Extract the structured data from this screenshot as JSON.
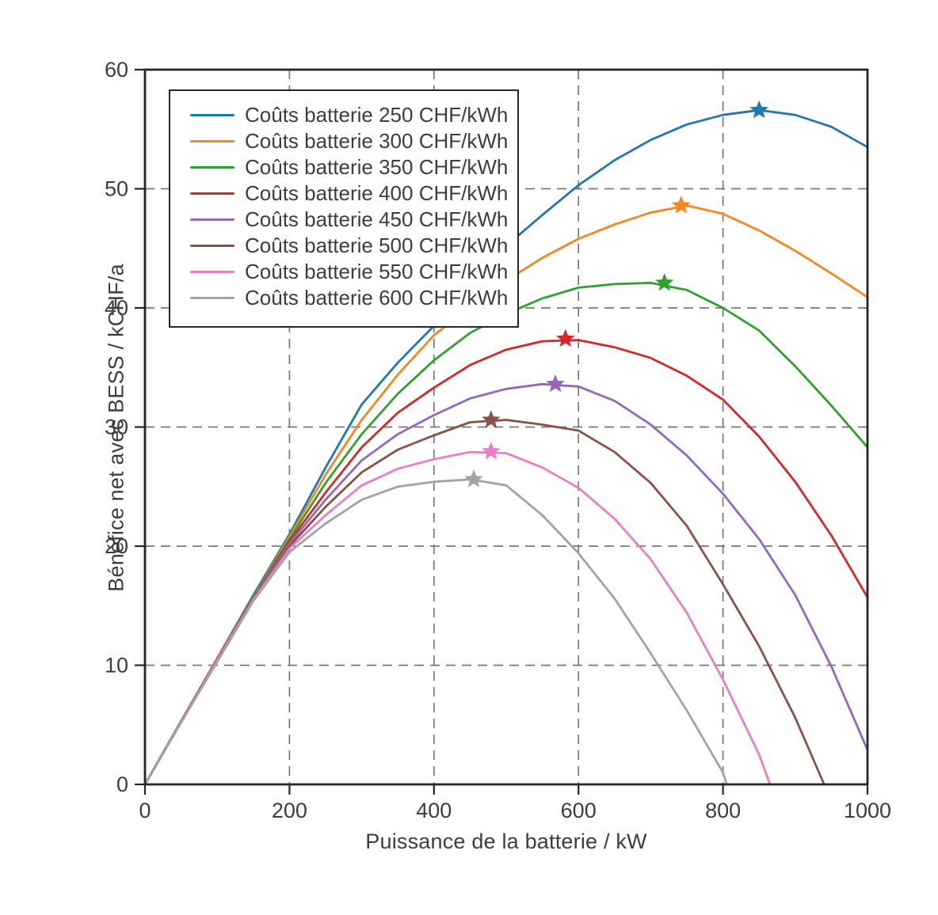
{
  "figure": {
    "background": "#ffffff",
    "axis_color": "#262626",
    "grid_color": "#777777",
    "text_color": "#3d3d3d"
  },
  "chart_data": {
    "type": "line",
    "title": "",
    "xlabel": "Puissance de la batterie / kW",
    "ylabel": "Bénéfice net avec BESS / kCHF/a",
    "xlim": [
      0,
      1000
    ],
    "ylim": [
      0,
      60
    ],
    "xticks": [
      0,
      200,
      400,
      600,
      800,
      1000
    ],
    "yticks": [
      0,
      10,
      20,
      30,
      40,
      50,
      60
    ],
    "grid": "dashed",
    "legend_position": "upper-left",
    "marker": "star-at-maximum",
    "series": [
      {
        "name": "Coûts batterie 250 CHF/kWh",
        "color": "#2077b4",
        "peak": [
          850,
          56.6
        ],
        "points": [
          [
            0,
            0
          ],
          [
            50,
            5.3
          ],
          [
            100,
            10.6
          ],
          [
            150,
            15.9
          ],
          [
            200,
            21.0
          ],
          [
            250,
            26.6
          ],
          [
            300,
            31.9
          ],
          [
            350,
            35.4
          ],
          [
            400,
            38.5
          ],
          [
            450,
            41.9
          ],
          [
            500,
            45.2
          ],
          [
            550,
            47.8
          ],
          [
            600,
            50.3
          ],
          [
            650,
            52.4
          ],
          [
            700,
            54.1
          ],
          [
            750,
            55.4
          ],
          [
            800,
            56.2
          ],
          [
            850,
            56.6
          ],
          [
            900,
            56.2
          ],
          [
            950,
            55.2
          ],
          [
            1000,
            53.5
          ]
        ]
      },
      {
        "name": "Coûts batterie 300 CHF/kWh",
        "color": "#f78620",
        "peak": [
          742,
          48.6
        ],
        "points": [
          [
            0,
            0
          ],
          [
            50,
            5.3
          ],
          [
            100,
            10.6
          ],
          [
            150,
            15.8
          ],
          [
            200,
            20.8
          ],
          [
            250,
            26.0
          ],
          [
            300,
            30.6
          ],
          [
            350,
            34.4
          ],
          [
            400,
            37.7
          ],
          [
            450,
            40.1
          ],
          [
            500,
            42.3
          ],
          [
            550,
            44.2
          ],
          [
            600,
            45.8
          ],
          [
            650,
            47.0
          ],
          [
            700,
            48.0
          ],
          [
            750,
            48.6
          ],
          [
            800,
            47.9
          ],
          [
            850,
            46.5
          ],
          [
            900,
            44.8
          ],
          [
            950,
            42.9
          ],
          [
            1000,
            40.9
          ]
        ]
      },
      {
        "name": "Coûts batterie 350 CHF/kWh",
        "color": "#2ea12e",
        "peak": [
          719,
          42.1
        ],
        "points": [
          [
            0,
            0
          ],
          [
            50,
            5.3
          ],
          [
            100,
            10.5
          ],
          [
            150,
            15.8
          ],
          [
            200,
            20.6
          ],
          [
            250,
            25.3
          ],
          [
            300,
            29.4
          ],
          [
            350,
            32.8
          ],
          [
            400,
            35.6
          ],
          [
            450,
            37.9
          ],
          [
            500,
            39.5
          ],
          [
            550,
            40.8
          ],
          [
            600,
            41.7
          ],
          [
            650,
            42.0
          ],
          [
            700,
            42.1
          ],
          [
            750,
            41.5
          ],
          [
            800,
            40.0
          ],
          [
            850,
            38.1
          ],
          [
            900,
            35.1
          ],
          [
            950,
            31.8
          ],
          [
            1000,
            28.3
          ]
        ]
      },
      {
        "name": "Coûts batterie 400 CHF/kWh",
        "color": "#d62728",
        "peak": [
          582,
          37.4
        ],
        "points": [
          [
            0,
            0
          ],
          [
            50,
            5.3
          ],
          [
            100,
            10.5
          ],
          [
            150,
            15.7
          ],
          [
            200,
            20.4
          ],
          [
            250,
            24.5
          ],
          [
            300,
            28.3
          ],
          [
            350,
            31.2
          ],
          [
            400,
            33.3
          ],
          [
            450,
            35.2
          ],
          [
            500,
            36.5
          ],
          [
            550,
            37.2
          ],
          [
            600,
            37.3
          ],
          [
            650,
            36.7
          ],
          [
            700,
            35.8
          ],
          [
            750,
            34.3
          ],
          [
            800,
            32.3
          ],
          [
            850,
            29.2
          ],
          [
            900,
            25.4
          ],
          [
            950,
            20.9
          ],
          [
            1000,
            15.7
          ]
        ]
      },
      {
        "name": "Coûts batterie 450 CHF/kWh",
        "color": "#9467bd",
        "peak": [
          568,
          33.6
        ],
        "points": [
          [
            0,
            0
          ],
          [
            50,
            5.3
          ],
          [
            100,
            10.5
          ],
          [
            150,
            15.7
          ],
          [
            200,
            20.2
          ],
          [
            250,
            23.9
          ],
          [
            300,
            27.2
          ],
          [
            350,
            29.4
          ],
          [
            400,
            31.0
          ],
          [
            450,
            32.4
          ],
          [
            500,
            33.2
          ],
          [
            550,
            33.6
          ],
          [
            600,
            33.4
          ],
          [
            650,
            32.2
          ],
          [
            700,
            30.2
          ],
          [
            750,
            27.6
          ],
          [
            800,
            24.4
          ],
          [
            850,
            20.6
          ],
          [
            900,
            15.9
          ],
          [
            950,
            9.9
          ],
          [
            1000,
            2.9
          ]
        ]
      },
      {
        "name": "Coûts batterie 500 CHF/kWh",
        "color": "#8a5247",
        "peak": [
          479,
          30.6
        ],
        "points": [
          [
            0,
            0
          ],
          [
            50,
            5.2
          ],
          [
            100,
            10.4
          ],
          [
            150,
            15.6
          ],
          [
            200,
            20.0
          ],
          [
            250,
            23.3
          ],
          [
            300,
            26.2
          ],
          [
            350,
            28.1
          ],
          [
            400,
            29.3
          ],
          [
            450,
            30.4
          ],
          [
            500,
            30.6
          ],
          [
            550,
            30.2
          ],
          [
            600,
            29.7
          ],
          [
            650,
            27.9
          ],
          [
            700,
            25.3
          ],
          [
            750,
            21.7
          ],
          [
            800,
            16.8
          ],
          [
            850,
            11.6
          ],
          [
            900,
            5.6
          ],
          [
            940,
            0
          ]
        ]
      },
      {
        "name": "Coûts batterie 550 CHF/kWh",
        "color": "#e87fc4",
        "peak": [
          479,
          27.95
        ],
        "points": [
          [
            0,
            0
          ],
          [
            50,
            5.2
          ],
          [
            100,
            10.4
          ],
          [
            150,
            15.5
          ],
          [
            200,
            19.8
          ],
          [
            250,
            22.6
          ],
          [
            300,
            25.1
          ],
          [
            350,
            26.5
          ],
          [
            400,
            27.3
          ],
          [
            450,
            27.9
          ],
          [
            500,
            27.8
          ],
          [
            550,
            26.6
          ],
          [
            600,
            24.9
          ],
          [
            650,
            22.3
          ],
          [
            700,
            18.9
          ],
          [
            750,
            14.4
          ],
          [
            800,
            8.8
          ],
          [
            850,
            2.5
          ],
          [
            865,
            0
          ]
        ]
      },
      {
        "name": "Coûts batterie 600 CHF/kWh",
        "color": "#a3a3a3",
        "peak": [
          455,
          25.6
        ],
        "points": [
          [
            0,
            0
          ],
          [
            50,
            5.2
          ],
          [
            100,
            10.3
          ],
          [
            150,
            15.4
          ],
          [
            200,
            19.5
          ],
          [
            250,
            21.9
          ],
          [
            300,
            23.9
          ],
          [
            350,
            25.0
          ],
          [
            400,
            25.4
          ],
          [
            450,
            25.6
          ],
          [
            500,
            25.1
          ],
          [
            550,
            22.6
          ],
          [
            600,
            19.4
          ],
          [
            650,
            15.6
          ],
          [
            700,
            11.0
          ],
          [
            750,
            6.2
          ],
          [
            800,
            1.0
          ],
          [
            805,
            0
          ]
        ]
      }
    ]
  }
}
